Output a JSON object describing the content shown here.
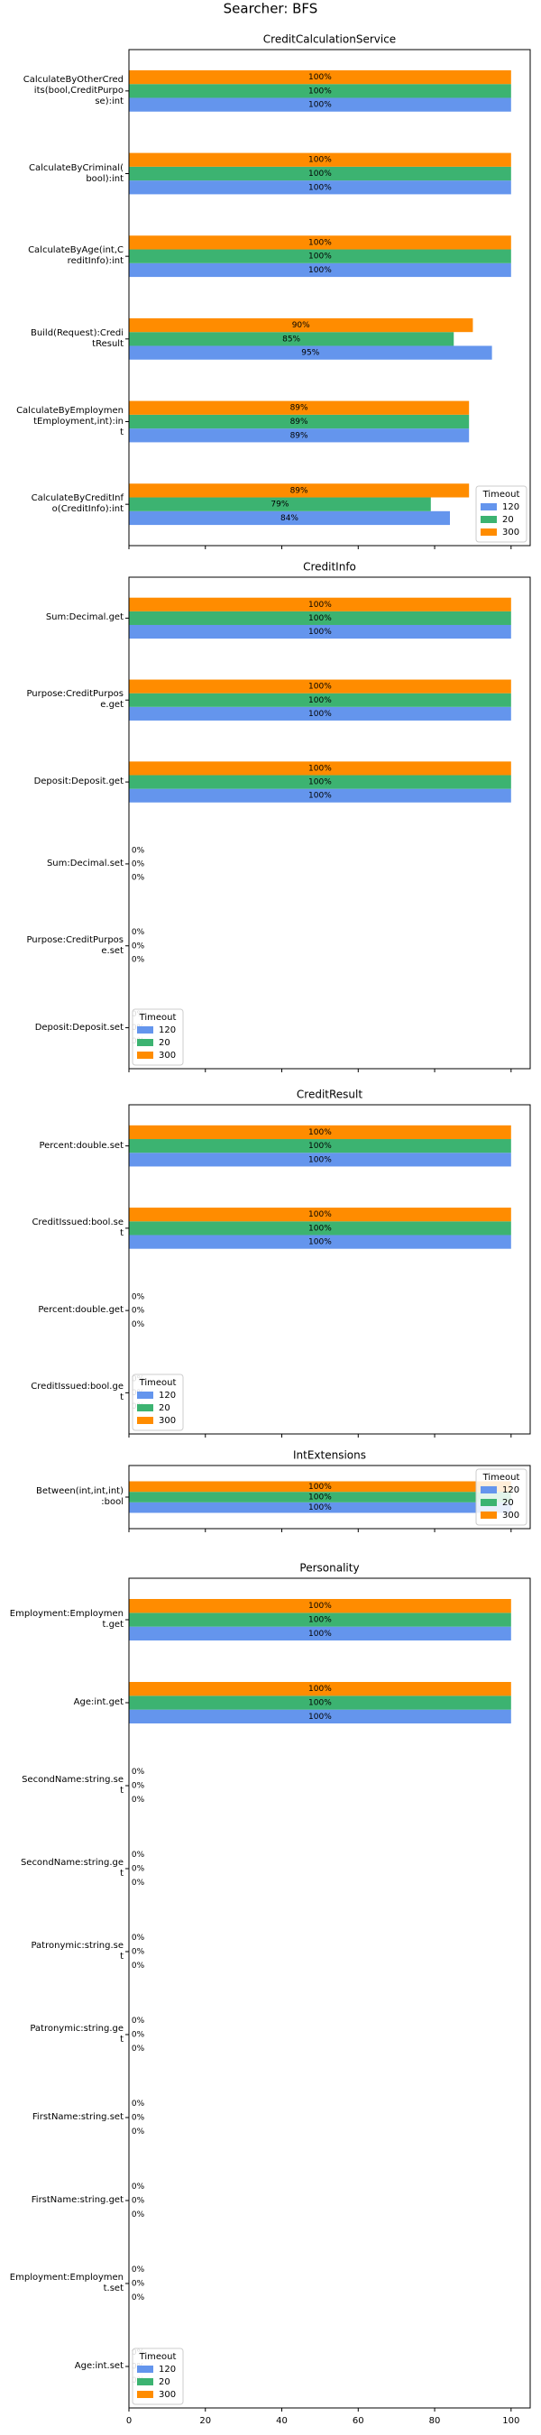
{
  "title": "Searcher: BFS",
  "chart_data": [
    {
      "type": "barh",
      "title": "CreditCalculationService",
      "categories": [
        "CalculateByOtherCred\nits(bool,CreditPurpo\nse):int",
        "CalculateByCriminal(\nbool):int",
        "CalculateByAge(int,C\nreditInfo):int",
        "Build(Request):Credi\ntResult",
        "CalculateByEmploymen\ntEmployment,int):in\nt",
        "CalculateByCreditInf\no(CreditInfo):int"
      ],
      "series": [
        {
          "name": "120",
          "color": "#6495ed",
          "values": [
            100,
            100,
            100,
            95,
            89,
            84
          ],
          "value_labels": [
            "100%",
            "100%",
            "100%",
            "95%",
            "89%",
            "84%"
          ]
        },
        {
          "name": "20",
          "color": "#3cb371",
          "values": [
            100,
            100,
            100,
            85,
            89,
            79
          ],
          "value_labels": [
            "100%",
            "100%",
            "100%",
            "85%",
            "89%",
            "79%"
          ]
        },
        {
          "name": "300",
          "color": "#ff8c00",
          "values": [
            100,
            100,
            100,
            90,
            89,
            89
          ],
          "value_labels": [
            "100%",
            "100%",
            "100%",
            "90%",
            "89%",
            "89%"
          ]
        }
      ],
      "xlim": [
        0,
        105
      ],
      "xticks": [
        0,
        20,
        40,
        60,
        80,
        100
      ],
      "legend_title": "Timeout",
      "legend_loc": "lower right"
    },
    {
      "type": "barh",
      "title": "CreditInfo",
      "categories": [
        "Sum:Decimal.get",
        "Purpose:CreditPurpos\ne.get",
        "Deposit:Deposit.get",
        "Sum:Decimal.set",
        "Purpose:CreditPurpos\ne.set",
        "Deposit:Deposit.set"
      ],
      "series": [
        {
          "name": "120",
          "color": "#6495ed",
          "values": [
            100,
            100,
            100,
            0,
            0,
            0
          ],
          "value_labels": [
            "100%",
            "100%",
            "100%",
            "0%",
            "0%",
            "0%"
          ]
        },
        {
          "name": "20",
          "color": "#3cb371",
          "values": [
            100,
            100,
            100,
            0,
            0,
            0
          ],
          "value_labels": [
            "100%",
            "100%",
            "100%",
            "0%",
            "0%",
            "0%"
          ]
        },
        {
          "name": "300",
          "color": "#ff8c00",
          "values": [
            100,
            100,
            100,
            0,
            0,
            0
          ],
          "value_labels": [
            "100%",
            "100%",
            "100%",
            "0%",
            "0%",
            "0%"
          ]
        }
      ],
      "xlim": [
        0,
        105
      ],
      "xticks": [
        0,
        20,
        40,
        60,
        80,
        100
      ],
      "legend_title": "Timeout",
      "legend_loc": "lower left"
    },
    {
      "type": "barh",
      "title": "CreditResult",
      "categories": [
        "Percent:double.set",
        "CreditIssued:bool.se\nt",
        "Percent:double.get",
        "CreditIssued:bool.ge\nt"
      ],
      "series": [
        {
          "name": "120",
          "color": "#6495ed",
          "values": [
            100,
            100,
            0,
            0
          ],
          "value_labels": [
            "100%",
            "100%",
            "0%",
            "0%"
          ]
        },
        {
          "name": "20",
          "color": "#3cb371",
          "values": [
            100,
            100,
            0,
            0
          ],
          "value_labels": [
            "100%",
            "100%",
            "0%",
            "0%"
          ]
        },
        {
          "name": "300",
          "color": "#ff8c00",
          "values": [
            100,
            100,
            0,
            0
          ],
          "value_labels": [
            "100%",
            "100%",
            "0%",
            "0%"
          ]
        }
      ],
      "xlim": [
        0,
        105
      ],
      "xticks": [
        0,
        20,
        40,
        60,
        80,
        100
      ],
      "legend_title": "Timeout",
      "legend_loc": "lower left"
    },
    {
      "type": "barh",
      "title": "IntExtensions",
      "categories": [
        "Between(int,int,int)\n:bool"
      ],
      "series": [
        {
          "name": "120",
          "color": "#6495ed",
          "values": [
            100
          ],
          "value_labels": [
            "100%"
          ]
        },
        {
          "name": "20",
          "color": "#3cb371",
          "values": [
            100
          ],
          "value_labels": [
            "100%"
          ]
        },
        {
          "name": "300",
          "color": "#ff8c00",
          "values": [
            100
          ],
          "value_labels": [
            "100%"
          ]
        }
      ],
      "xlim": [
        0,
        105
      ],
      "xticks": [
        0,
        20,
        40,
        60,
        80,
        100
      ],
      "legend_title": "Timeout",
      "legend_loc": "upper right"
    },
    {
      "type": "barh",
      "title": "Personality",
      "categories": [
        "Employment:Employmen\nt.get",
        "Age:int.get",
        "SecondName:string.se\nt",
        "SecondName:string.ge\nt",
        "Patronymic:string.se\nt",
        "Patronymic:string.ge\nt",
        "FirstName:string.set",
        "FirstName:string.get",
        "Employment:Employmen\nt.set",
        "Age:int.set"
      ],
      "series": [
        {
          "name": "120",
          "color": "#6495ed",
          "values": [
            100,
            100,
            0,
            0,
            0,
            0,
            0,
            0,
            0,
            0
          ],
          "value_labels": [
            "100%",
            "100%",
            "0%",
            "0%",
            "0%",
            "0%",
            "0%",
            "0%",
            "0%",
            "0%"
          ]
        },
        {
          "name": "20",
          "color": "#3cb371",
          "values": [
            100,
            100,
            0,
            0,
            0,
            0,
            0,
            0,
            0,
            0
          ],
          "value_labels": [
            "100%",
            "100%",
            "0%",
            "0%",
            "0%",
            "0%",
            "0%",
            "0%",
            "0%",
            "0%"
          ]
        },
        {
          "name": "300",
          "color": "#ff8c00",
          "values": [
            100,
            100,
            0,
            0,
            0,
            0,
            0,
            0,
            0,
            0
          ],
          "value_labels": [
            "100%",
            "100%",
            "0%",
            "0%",
            "0%",
            "0%",
            "0%",
            "0%",
            "0%",
            "0%"
          ]
        }
      ],
      "xlim": [
        0,
        105
      ],
      "xticks": [
        0,
        20,
        40,
        60,
        80,
        100
      ],
      "legend_title": "Timeout",
      "legend_loc": "lower left"
    }
  ]
}
